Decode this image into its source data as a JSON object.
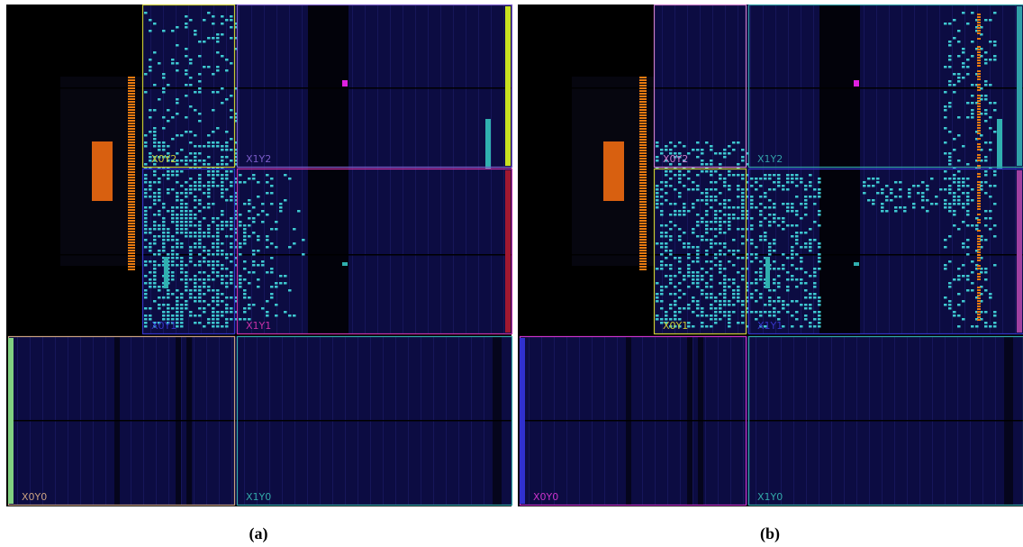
{
  "panels": [
    {
      "caption": "(a)",
      "regions": [
        {
          "label": "X0Y2",
          "color": "#c8c832"
        },
        {
          "label": "X1Y2",
          "color": "#7a5cc8"
        },
        {
          "label": "X0Y1",
          "color": "#3434c8"
        },
        {
          "label": "X1Y1",
          "color": "#c832a8"
        },
        {
          "label": "X0Y0",
          "color": "#c8a080"
        },
        {
          "label": "X1Y0",
          "color": "#32a8a8"
        }
      ]
    },
    {
      "caption": "(b)",
      "regions": [
        {
          "label": "X0Y2",
          "color": "#c87ac8"
        },
        {
          "label": "X1Y2",
          "color": "#32a0a8"
        },
        {
          "label": "X0Y1",
          "color": "#c8c832"
        },
        {
          "label": "X1Y1",
          "color": "#3434c8"
        },
        {
          "label": "X0Y0",
          "color": "#c832c8"
        },
        {
          "label": "X1Y0",
          "color": "#32a8a8"
        }
      ]
    }
  ]
}
